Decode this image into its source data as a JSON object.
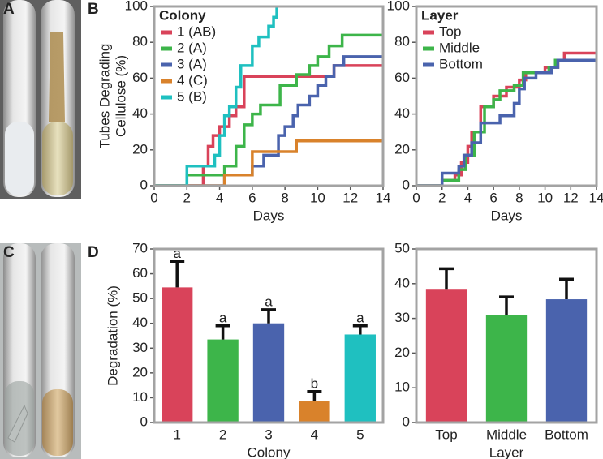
{
  "panel_labels": [
    "A",
    "B",
    "C",
    "D"
  ],
  "chart_data": [
    {
      "type": "step",
      "xlabel": "Days",
      "ylabel": [
        "Tubes Degrading",
        "Cellulose (%)"
      ],
      "legend_title": "Colony",
      "legend": "upper left",
      "xlim": [
        0,
        14
      ],
      "ylim": [
        0,
        100
      ],
      "xticks": [
        0,
        2,
        4,
        6,
        8,
        10,
        12,
        14
      ],
      "yticks": [
        0,
        20,
        40,
        60,
        80,
        100
      ],
      "series": [
        {
          "name": "1 (AB)",
          "color": "#d9435a",
          "x": [
            0,
            3,
            3.3,
            3.6,
            4,
            4.6,
            5,
            5.5,
            11,
            14
          ],
          "values": [
            0,
            11,
            22,
            28,
            33,
            39,
            44,
            61,
            67,
            67
          ]
        },
        {
          "name": "2 (A)",
          "color": "#3db54a",
          "x": [
            0,
            2,
            4.3,
            5,
            5.5,
            6,
            6.5,
            7.7,
            8.7,
            9.5,
            10,
            10.7,
            11.5,
            14
          ],
          "values": [
            0,
            6,
            11,
            22,
            34,
            40,
            45,
            56,
            62,
            67,
            72,
            78,
            84,
            84
          ]
        },
        {
          "name": "3 (A)",
          "color": "#4a63ad",
          "x": [
            0,
            4.3,
            6,
            6.7,
            7.6,
            8,
            8.5,
            8.8,
            9.5,
            10,
            10.5,
            11,
            11.6,
            14
          ],
          "values": [
            0,
            6,
            11,
            17,
            28,
            33,
            39,
            45,
            50,
            56,
            61,
            67,
            72,
            72
          ]
        },
        {
          "name": "4 (C)",
          "color": "#d9822b",
          "x": [
            0,
            4.3,
            6,
            8.7,
            14
          ],
          "values": [
            0,
            6,
            19,
            25,
            25
          ]
        },
        {
          "name": "5 (B)",
          "color": "#1fc0c0",
          "x": [
            0,
            2,
            3.7,
            4,
            4.3,
            4.6,
            5,
            5.3,
            6,
            6.4,
            7,
            7.3,
            7.5
          ],
          "values": [
            0,
            11,
            17,
            28,
            39,
            44,
            55,
            67,
            78,
            83,
            89,
            94,
            100
          ]
        }
      ]
    },
    {
      "type": "step",
      "xlabel": "Days",
      "legend_title": "Layer",
      "legend": "upper left",
      "xlim": [
        0,
        14
      ],
      "ylim": [
        0,
        100
      ],
      "xticks": [
        0,
        2,
        4,
        6,
        8,
        10,
        12,
        14
      ],
      "yticks": [
        0,
        20,
        40,
        60,
        80,
        100
      ],
      "series": [
        {
          "name": "Top",
          "color": "#d9435a",
          "x": [
            0,
            2,
            3,
            3.5,
            4,
            4.3,
            5,
            6,
            7,
            8,
            8.5,
            10,
            11,
            11.5,
            14
          ],
          "values": [
            0,
            3,
            6,
            13,
            22,
            30,
            44,
            50,
            55,
            59,
            63,
            66,
            70,
            74,
            74
          ]
        },
        {
          "name": "Middle",
          "color": "#3db54a",
          "x": [
            0,
            2,
            3.3,
            3.8,
            4.5,
            5.3,
            6,
            6.5,
            7.6,
            8.3,
            10.3,
            10.8,
            14
          ],
          "values": [
            0,
            3,
            9,
            17,
            30,
            44,
            48,
            53,
            56,
            63,
            66,
            70,
            70
          ]
        },
        {
          "name": "Bottom",
          "color": "#4a63ad",
          "x": [
            0,
            2,
            3.3,
            3.7,
            4.3,
            5,
            6.5,
            7.6,
            8,
            8.4,
            9.3,
            10.5,
            11,
            14
          ],
          "values": [
            0,
            7,
            11,
            17,
            24,
            35,
            39,
            46,
            54,
            60,
            63,
            66,
            70,
            70
          ]
        }
      ]
    },
    {
      "type": "bar",
      "xlabel": "Colony",
      "ylabel": [
        "Degradation (%)"
      ],
      "categories": [
        "1",
        "2",
        "3",
        "4",
        "5"
      ],
      "values": [
        54.5,
        33.5,
        40,
        8.5,
        35.5
      ],
      "errors": [
        10.5,
        5.5,
        5.5,
        4,
        3.5
      ],
      "annotations": [
        "a",
        "a",
        "a",
        "b",
        "a"
      ],
      "colors": [
        "#d9435a",
        "#3db54a",
        "#4a63ad",
        "#d9822b",
        "#1fc0c0"
      ],
      "ylim": [
        0,
        70
      ],
      "yticks": [
        0,
        10,
        20,
        30,
        40,
        50,
        60,
        70
      ]
    },
    {
      "type": "bar",
      "xlabel": "Layer",
      "categories": [
        "Top",
        "Middle",
        "Bottom"
      ],
      "values": [
        38.5,
        31,
        35.5
      ],
      "errors": [
        5.8,
        5.2,
        5.8
      ],
      "colors": [
        "#d9435a",
        "#3db54a",
        "#4a63ad"
      ],
      "ylim": [
        0,
        50
      ],
      "yticks": [
        0,
        10,
        20,
        30,
        40,
        50
      ]
    }
  ]
}
